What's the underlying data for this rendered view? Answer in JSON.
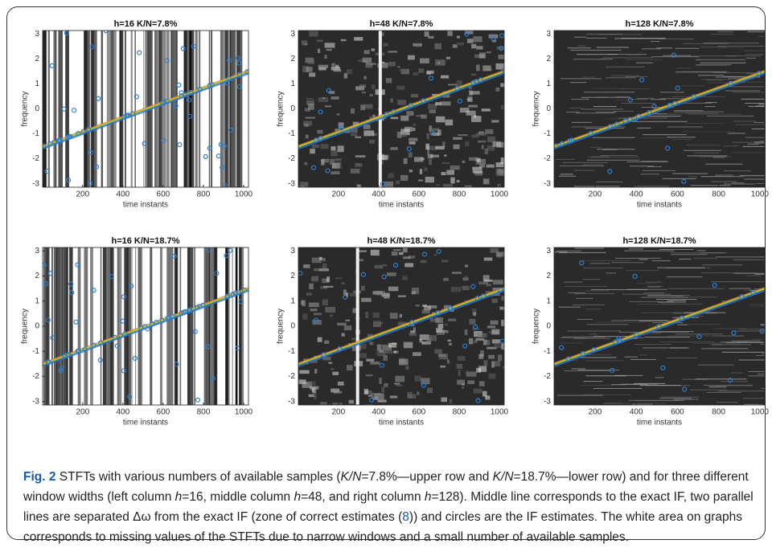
{
  "figure": {
    "panels": [
      {
        "title": "h=16 K/N=7.8%",
        "xlabel": "time instants",
        "ylabel": "frequency",
        "xlim": [
          1,
          1024
        ],
        "ylim": [
          -3.14,
          3.14
        ],
        "xticks": [
          200,
          400,
          600,
          800,
          1000
        ],
        "yticks": [
          -3,
          -2,
          -1,
          0,
          1,
          2,
          3
        ]
      },
      {
        "title": "h=48 K/N=7.8%",
        "xlabel": "time instants",
        "ylabel": "frequency",
        "xlim": [
          1,
          1024
        ],
        "ylim": [
          -3.14,
          3.14
        ],
        "xticks": [
          200,
          400,
          600,
          800,
          1000
        ],
        "yticks": [
          -3,
          -2,
          -1,
          0,
          1,
          2,
          3
        ]
      },
      {
        "title": "h=128 K/N=7.8%",
        "xlabel": "time instants",
        "ylabel": "frequency",
        "xlim": [
          1,
          1024
        ],
        "ylim": [
          -3.14,
          3.14
        ],
        "xticks": [
          200,
          400,
          600,
          800,
          1000
        ],
        "yticks": [
          -3,
          -2,
          -1,
          0,
          1,
          2,
          3
        ]
      },
      {
        "title": "h=16 K/N=18.7%",
        "xlabel": "time instants",
        "ylabel": "frequency",
        "xlim": [
          1,
          1024
        ],
        "ylim": [
          -3.14,
          3.14
        ],
        "xticks": [
          200,
          400,
          600,
          800,
          1000
        ],
        "yticks": [
          -3,
          -2,
          -1,
          0,
          1,
          2,
          3
        ]
      },
      {
        "title": "h=48 K/N=18.7%",
        "xlabel": "time instants",
        "ylabel": "frequency",
        "xlim": [
          1,
          1024
        ],
        "ylim": [
          -3.14,
          3.14
        ],
        "xticks": [
          200,
          400,
          600,
          800,
          1000
        ],
        "yticks": [
          -3,
          -2,
          -1,
          0,
          1,
          2,
          3
        ]
      },
      {
        "title": "h=128 K/N=18.7%",
        "xlabel": "time instants",
        "ylabel": "frequency",
        "xlim": [
          1,
          1024
        ],
        "ylim": [
          -3.14,
          3.14
        ],
        "xticks": [
          200,
          400,
          600,
          800,
          1000
        ],
        "yticks": [
          -3,
          -2,
          -1,
          0,
          1,
          2,
          3
        ]
      }
    ]
  },
  "caption": {
    "label": "Fig. 2",
    "segments": [
      {
        "text": " STFTs with various numbers of available samples ("
      },
      {
        "text": "K/N",
        "italic": true
      },
      {
        "text": "=7.8%—upper row and "
      },
      {
        "text": "K/N",
        "italic": true
      },
      {
        "text": "=18.7%—lower row) and for three different window widths (left column "
      },
      {
        "text": "h",
        "italic": true
      },
      {
        "text": "=16, middle column "
      },
      {
        "text": "h",
        "italic": true
      },
      {
        "text": "=48, and right column "
      },
      {
        "text": "h",
        "italic": true
      },
      {
        "text": "=128). Middle line corresponds to the exact IF, two parallel lines are separated Δω from the exact IF (zone of correct estimates ("
      },
      {
        "text": "8",
        "link": true
      },
      {
        "text": ")) and circles are the IF estimates. The white area on graphs corresponds to missing values of the STFTs due to narrow windows and a small number of available samples."
      }
    ]
  }
}
